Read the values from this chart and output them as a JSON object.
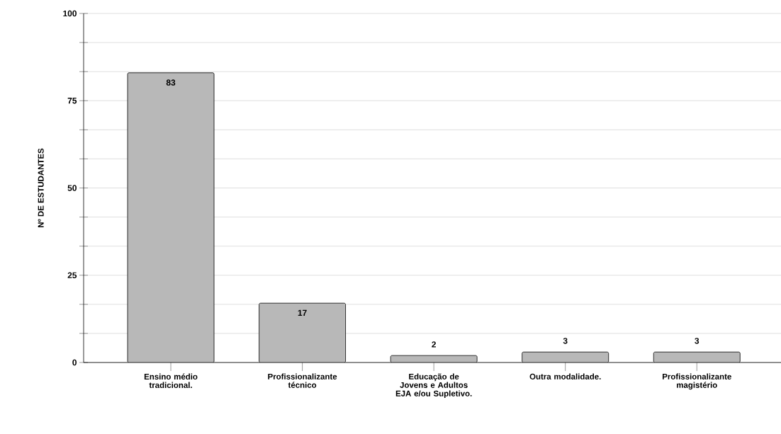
{
  "chart_data": {
    "type": "bar",
    "ylabel": "Nº DE ESTUDANTES",
    "categories": [
      "Ensino médio tradicional.",
      "Profissionalizante técnico",
      "Educação de Jovens e Adultos EJA e/ou Supletivo.",
      "Outra modalidade.",
      "Profissionalizante magistério"
    ],
    "values": [
      83,
      17,
      2,
      3,
      3
    ],
    "color": "#b8b8b8",
    "ylim": [
      0,
      100
    ],
    "yticks": [
      0,
      {
        "value": 8.333,
        "label": null
      },
      {
        "value": 16.667,
        "label": null
      },
      25,
      {
        "value": 33.333,
        "label": null
      },
      {
        "value": 41.667,
        "label": null
      },
      50,
      {
        "value": 58.333,
        "label": null
      },
      {
        "value": 66.667,
        "label": null
      },
      75,
      {
        "value": 83.333,
        "label": null
      },
      {
        "value": 91.667,
        "label": null
      },
      100
    ],
    "grid": "y",
    "data_labels": true
  }
}
